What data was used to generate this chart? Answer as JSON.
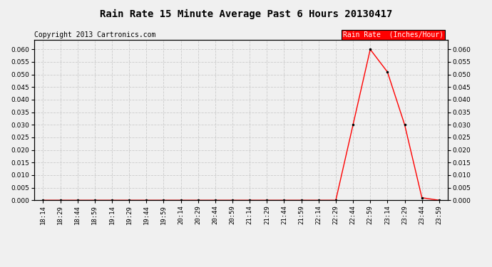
{
  "title": "Rain Rate 15 Minute Average Past 6 Hours 20130417",
  "copyright": "Copyright 2013 Cartronics.com",
  "legend_label": "Rain Rate  (Inches/Hour)",
  "x_labels": [
    "18:14",
    "18:29",
    "18:44",
    "18:59",
    "19:14",
    "19:29",
    "19:44",
    "19:59",
    "20:14",
    "20:29",
    "20:44",
    "20:59",
    "21:14",
    "21:29",
    "21:44",
    "21:59",
    "22:14",
    "22:29",
    "22:44",
    "22:59",
    "23:14",
    "23:29",
    "23:44",
    "23:59"
  ],
  "y_values": [
    0.0,
    0.0,
    0.0,
    0.0,
    0.0,
    0.0,
    0.0,
    0.0,
    0.0,
    0.0,
    0.0,
    0.0,
    0.0,
    0.0,
    0.0,
    0.0,
    0.0,
    0.0,
    0.03,
    0.06,
    0.051,
    0.03,
    0.001,
    0.0
  ],
  "line_color": "#ff0000",
  "marker": ".",
  "marker_color": "#000000",
  "marker_size": 3,
  "background_color": "#f0f0f0",
  "plot_bg_color": "#f0f0f0",
  "grid_color": "#cccccc",
  "ylim": [
    0.0,
    0.0637
  ],
  "yticks": [
    0.0,
    0.005,
    0.01,
    0.015,
    0.02,
    0.025,
    0.03,
    0.035,
    0.04,
    0.045,
    0.05,
    0.055,
    0.06
  ],
  "title_fontsize": 10,
  "copyright_fontsize": 7,
  "legend_fontsize": 7,
  "tick_fontsize": 6.5
}
